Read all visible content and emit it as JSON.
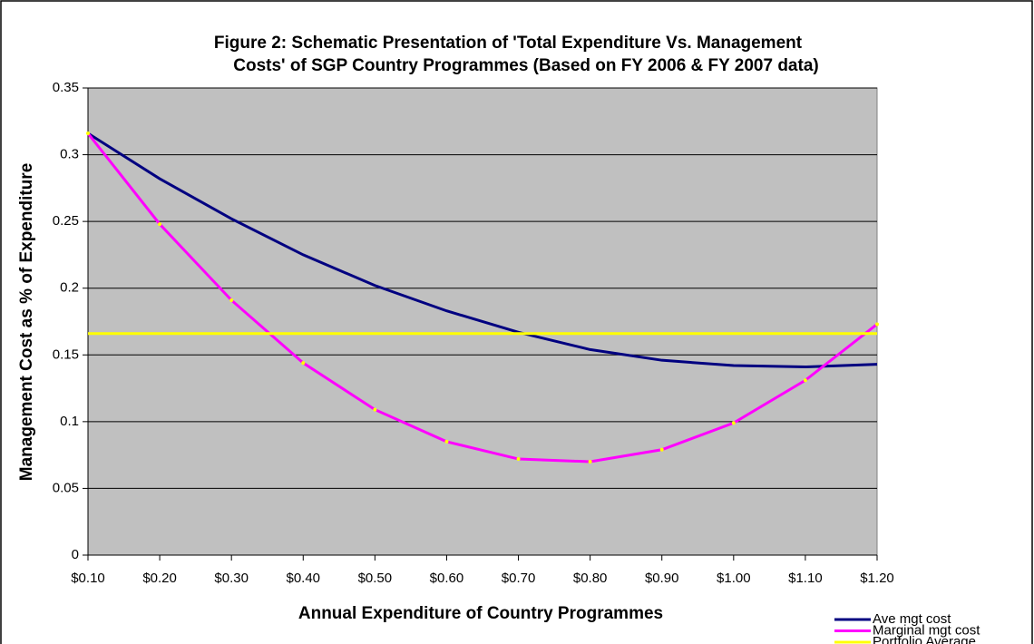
{
  "chart_data": {
    "type": "line",
    "title": [
      "Figure 2: Schematic Presentation of 'Total Expenditure Vs.  Management",
      "Costs' of SGP Country Programmes (Based on FY 2006 & FY 2007 data)"
    ],
    "x_label": "Annual Expenditure of Country Programmes",
    "y_label": "Management Cost as % of Expenditure",
    "categories": [
      "$0.10",
      "$0.20",
      "$0.30",
      "$0.40",
      "$0.50",
      "$0.60",
      "$0.70",
      "$0.80",
      "$0.90",
      "$1.00",
      "$1.10",
      "$1.20"
    ],
    "series": [
      {
        "name": "Ave mgt cost",
        "color": "#000080",
        "values": [
          0.316,
          0.282,
          0.252,
          0.225,
          0.202,
          0.183,
          0.167,
          0.154,
          0.146,
          0.142,
          0.141,
          0.143
        ]
      },
      {
        "name": "Marginal mgt cost",
        "color": "#ff00ff",
        "marker_color": "#ffff00",
        "values": [
          0.316,
          0.248,
          0.191,
          0.144,
          0.109,
          0.085,
          0.072,
          0.07,
          0.079,
          0.099,
          0.131,
          0.173
        ]
      },
      {
        "name": "Portfolio Average",
        "color": "#ffff00",
        "values": [
          0.166,
          0.166,
          0.166,
          0.166,
          0.166,
          0.166,
          0.166,
          0.166,
          0.166,
          0.166,
          0.166,
          0.166
        ]
      }
    ],
    "ylim": [
      0,
      0.35
    ],
    "yticks": [
      0,
      0.05,
      0.1,
      0.15,
      0.2,
      0.25,
      0.3,
      0.35
    ],
    "grid": true,
    "plot_background": "#c0c0c0",
    "legend": "bottom-right"
  }
}
